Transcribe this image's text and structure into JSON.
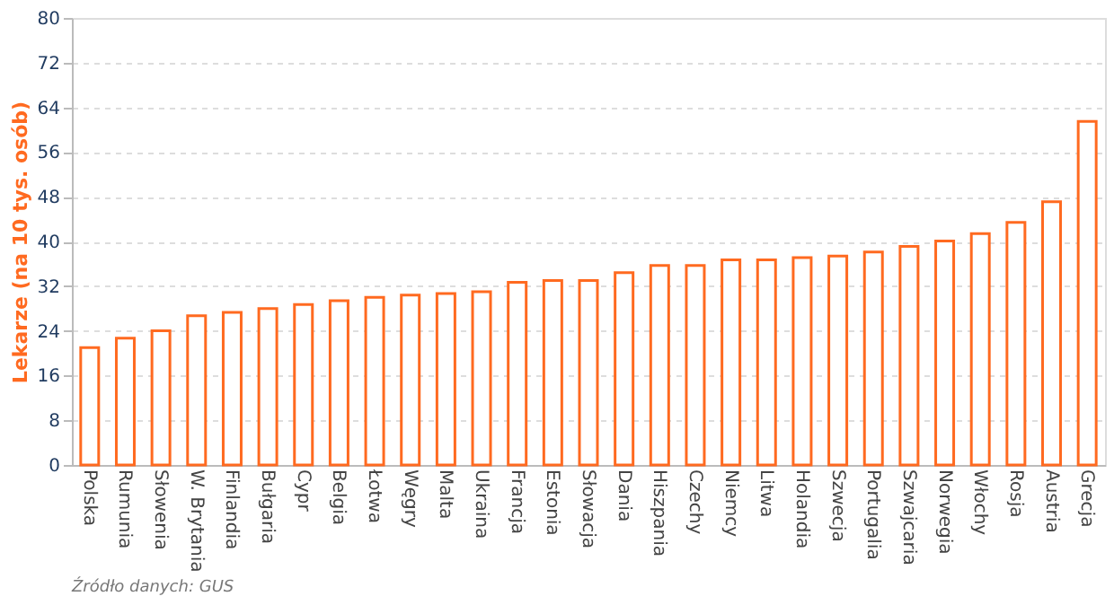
{
  "chart_data": {
    "type": "bar",
    "ylabel": "Lekarze (na 10 tys. osób)",
    "categories": [
      "Polska",
      "Rumunia",
      "Słowenia",
      "W. Brytania",
      "Finlandia",
      "Bułgaria",
      "Cypr",
      "Belgia",
      "Łotwa",
      "Węgry",
      "Malta",
      "Ukraina",
      "Francja",
      "Estonia",
      "Słowacja",
      "Dania",
      "Hiszpania",
      "Czechy",
      "Niemcy",
      "Litwa",
      "Holandia",
      "Szwecja",
      "Portugalia",
      "Szwajcaria",
      "Norwegia",
      "Włochy",
      "Rosja",
      "Austria",
      "Grecja"
    ],
    "values": [
      21.0,
      22.7,
      24.0,
      26.7,
      27.3,
      28.0,
      28.7,
      29.4,
      30.0,
      30.4,
      30.7,
      31.0,
      32.7,
      33.0,
      33.0,
      34.4,
      35.7,
      35.7,
      36.7,
      36.7,
      37.1,
      37.4,
      38.1,
      39.1,
      40.1,
      41.4,
      43.4,
      47.1,
      61.5
    ],
    "color": "#ff6a20",
    "ylim": [
      0,
      80
    ],
    "yticks": [
      0,
      8,
      16,
      24,
      32,
      40,
      48,
      56,
      64,
      72,
      80
    ],
    "grid": "y",
    "annotations": [
      "Źródło danych: GUS"
    ]
  }
}
